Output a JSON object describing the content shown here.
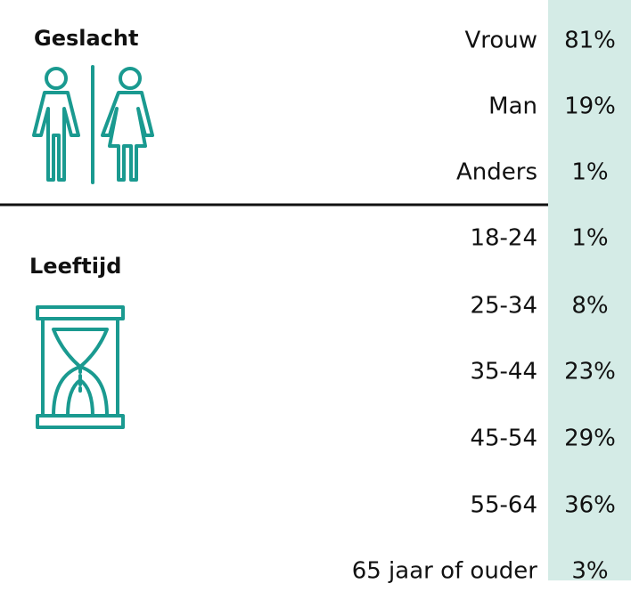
{
  "sections": [
    {
      "title": "Geslacht",
      "rows": [
        {
          "label": "Vrouw",
          "value": "81%"
        },
        {
          "label": "Man",
          "value": "19%"
        },
        {
          "label": "Anders",
          "value": "1%"
        }
      ]
    },
    {
      "title": "Leeftijd",
      "rows": [
        {
          "label": "18-24",
          "value": "1%"
        },
        {
          "label": "25-34",
          "value": "8%"
        },
        {
          "label": "35-44",
          "value": "23%"
        },
        {
          "label": "45-54",
          "value": "29%"
        },
        {
          "label": "55-64",
          "value": "36%"
        },
        {
          "label": "65 jaar of ouder",
          "value": "3%"
        }
      ]
    }
  ]
}
